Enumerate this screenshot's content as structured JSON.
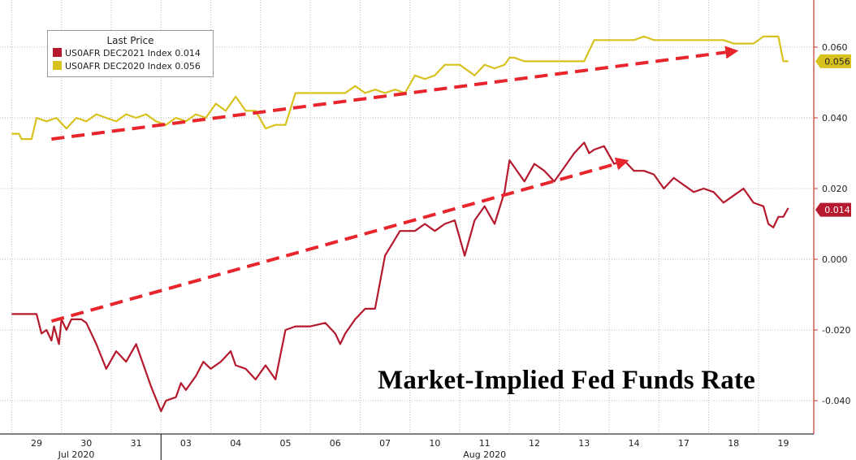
{
  "chart_data": {
    "type": "line",
    "title": "Market-Implied Fed Funds Rate",
    "xlabel": "",
    "ylabel": "",
    "x_ticks": [
      "29",
      "30",
      "31",
      "03",
      "04",
      "05",
      "06",
      "07",
      "10",
      "11",
      "12",
      "13",
      "14",
      "17",
      "18",
      "19"
    ],
    "month_labels": [
      "Jul 2020",
      "Aug 2020"
    ],
    "ylim": [
      -0.048,
      0.074
    ],
    "y_ticks": [
      "0.060",
      "0.040",
      "0.020",
      "0.000",
      "-0.020",
      "-0.040"
    ],
    "grid": true,
    "legend": {
      "title": "Last Price",
      "position": "top-left",
      "entries": [
        {
          "label": "US0AFR DEC2021 Index",
          "value": "0.014",
          "color": "#b5192d"
        },
        {
          "label": "US0AFR DEC2020 Index",
          "value": "0.056",
          "color": "#d8c21f"
        }
      ]
    },
    "last_value_tags": [
      {
        "text": "0.014",
        "color": "#b5192d",
        "y": 0.014
      },
      {
        "text": "0.056",
        "color": "#d8c21f",
        "y": 0.056
      }
    ],
    "series": [
      {
        "name": "US0AFR DEC2021 Index",
        "color": "#b5192d",
        "x": [
          -0.5,
          -0.2,
          0.0,
          0.1,
          0.2,
          0.3,
          0.35,
          0.45,
          0.5,
          0.6,
          0.7,
          0.8,
          0.9,
          1.0,
          1.2,
          1.4,
          1.6,
          1.8,
          2.0,
          2.15,
          2.3,
          2.5,
          2.6,
          2.8,
          2.9,
          3.0,
          3.2,
          3.35,
          3.5,
          3.7,
          3.9,
          4.0,
          4.2,
          4.4,
          4.6,
          4.8,
          5.0,
          5.2,
          5.5,
          5.8,
          6.0,
          6.1,
          6.2,
          6.4,
          6.6,
          6.8,
          7.0,
          7.3,
          7.6,
          7.8,
          8.0,
          8.2,
          8.4,
          8.6,
          8.8,
          9.0,
          9.2,
          9.4,
          9.5,
          9.6,
          9.8,
          10.0,
          10.2,
          10.4,
          10.6,
          10.8,
          11.0,
          11.1,
          11.2,
          11.4,
          11.6,
          11.8,
          12.0,
          12.2,
          12.4,
          12.6,
          12.8,
          13.0,
          13.2,
          13.4,
          13.6,
          13.8,
          14.0,
          14.2,
          14.4,
          14.6,
          14.7,
          14.8,
          14.9,
          15.0,
          15.1
        ],
        "y": [
          -0.0155,
          -0.0155,
          -0.0155,
          -0.021,
          -0.02,
          -0.023,
          -0.019,
          -0.024,
          -0.017,
          -0.02,
          -0.017,
          -0.017,
          -0.017,
          -0.018,
          -0.024,
          -0.031,
          -0.026,
          -0.029,
          -0.024,
          -0.03,
          -0.036,
          -0.043,
          -0.04,
          -0.039,
          -0.035,
          -0.037,
          -0.033,
          -0.029,
          -0.031,
          -0.029,
          -0.026,
          -0.03,
          -0.031,
          -0.034,
          -0.03,
          -0.034,
          -0.02,
          -0.019,
          -0.019,
          -0.018,
          -0.021,
          -0.024,
          -0.021,
          -0.017,
          -0.014,
          -0.014,
          0.001,
          0.008,
          0.008,
          0.01,
          0.008,
          0.01,
          0.011,
          0.001,
          0.011,
          0.015,
          0.01,
          0.019,
          0.028,
          0.026,
          0.022,
          0.027,
          0.025,
          0.022,
          0.026,
          0.03,
          0.033,
          0.03,
          0.031,
          0.032,
          0.027,
          0.028,
          0.025,
          0.025,
          0.024,
          0.02,
          0.023,
          0.021,
          0.019,
          0.02,
          0.019,
          0.016,
          0.018,
          0.02,
          0.016,
          0.015,
          0.01,
          0.009,
          0.012,
          0.012,
          0.0145
        ]
      },
      {
        "name": "US0AFR DEC2020 Index",
        "color": "#d8c21f",
        "x": [
          -0.5,
          -0.35,
          -0.3,
          -0.1,
          0.0,
          0.2,
          0.4,
          0.6,
          0.8,
          1.0,
          1.2,
          1.4,
          1.6,
          1.8,
          2.0,
          2.2,
          2.4,
          2.6,
          2.8,
          3.0,
          3.2,
          3.4,
          3.6,
          3.8,
          4.0,
          4.2,
          4.4,
          4.6,
          4.8,
          5.0,
          5.2,
          5.4,
          5.6,
          5.8,
          6.0,
          6.2,
          6.4,
          6.6,
          6.8,
          7.0,
          7.2,
          7.4,
          7.6,
          7.8,
          8.0,
          8.2,
          8.5,
          8.8,
          9.0,
          9.2,
          9.4,
          9.5,
          9.6,
          9.8,
          10.0,
          10.2,
          10.4,
          10.6,
          10.8,
          11.0,
          11.2,
          11.4,
          11.6,
          11.8,
          12.0,
          12.2,
          12.4,
          12.6,
          12.8,
          13.0,
          13.2,
          13.4,
          13.6,
          13.8,
          14.0,
          14.2,
          14.4,
          14.6,
          14.7,
          14.8,
          14.9,
          15.0,
          15.1
        ],
        "y": [
          0.0355,
          0.0355,
          0.034,
          0.034,
          0.04,
          0.039,
          0.04,
          0.037,
          0.04,
          0.039,
          0.041,
          0.04,
          0.039,
          0.041,
          0.04,
          0.041,
          0.039,
          0.038,
          0.04,
          0.039,
          0.041,
          0.04,
          0.044,
          0.042,
          0.046,
          0.042,
          0.042,
          0.037,
          0.038,
          0.038,
          0.047,
          0.047,
          0.047,
          0.047,
          0.047,
          0.047,
          0.049,
          0.047,
          0.048,
          0.047,
          0.048,
          0.047,
          0.052,
          0.051,
          0.052,
          0.055,
          0.055,
          0.052,
          0.055,
          0.054,
          0.055,
          0.057,
          0.057,
          0.056,
          0.056,
          0.056,
          0.056,
          0.056,
          0.056,
          0.056,
          0.062,
          0.062,
          0.062,
          0.062,
          0.062,
          0.063,
          0.062,
          0.062,
          0.062,
          0.062,
          0.062,
          0.062,
          0.062,
          0.062,
          0.061,
          0.061,
          0.061,
          0.063,
          0.063,
          0.063,
          0.063,
          0.056,
          0.056
        ]
      }
    ],
    "annotations": {
      "arrows": [
        {
          "series": "US0AFR DEC2020 Index",
          "from": [
            0.3,
            0.034
          ],
          "to": [
            14.1,
            0.059
          ]
        },
        {
          "series": "US0AFR DEC2021 Index",
          "from": [
            0.3,
            -0.0175
          ],
          "to": [
            11.9,
            0.028
          ]
        }
      ]
    }
  }
}
